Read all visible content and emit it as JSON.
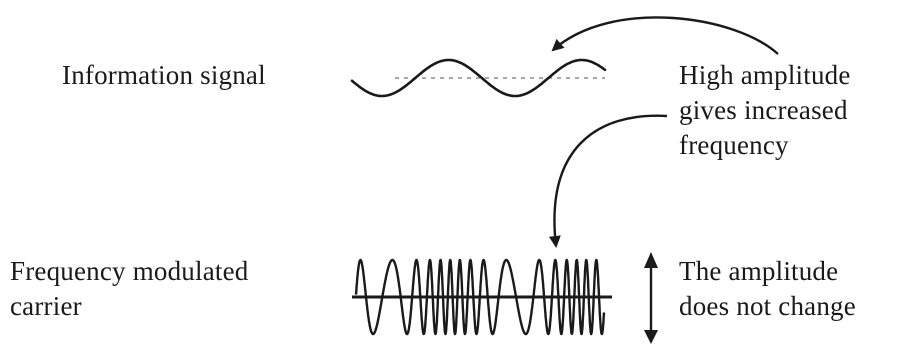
{
  "labels": {
    "information_signal": "Information signal",
    "high_amplitude": [
      "High amplitude",
      "gives increased",
      "frequency"
    ],
    "fm_carrier": [
      "Frequency modulated",
      "carrier"
    ],
    "amplitude_no_change": [
      "The amplitude",
      "does not change"
    ]
  },
  "colors": {
    "ink": "#1a1a1a",
    "background": "#ffffff"
  }
}
